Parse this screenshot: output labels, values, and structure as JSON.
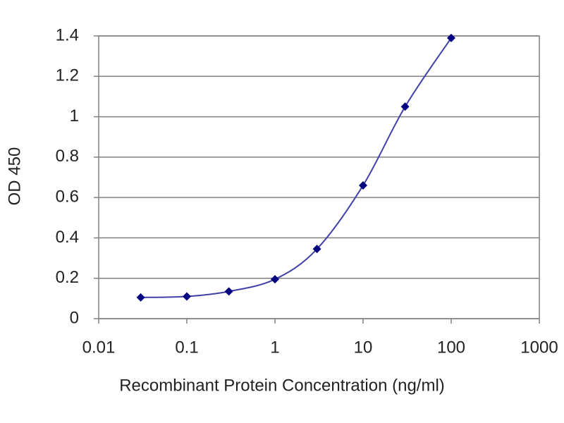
{
  "chart_data": {
    "type": "line",
    "x_label": "Recombinant Protein Concentration (ng/ml)",
    "y_label": "OD 450",
    "x": [
      0.03,
      0.1,
      0.3,
      1,
      3,
      10,
      30,
      100
    ],
    "series": [
      {
        "name": "OD 450",
        "color": "#000080",
        "line_color": "#4040a8",
        "values": [
          0.105,
          0.11,
          0.135,
          0.195,
          0.345,
          0.66,
          1.05,
          1.39
        ]
      }
    ],
    "xlim": [
      0.01,
      1000
    ],
    "xticks": [
      0.01,
      0.1,
      1,
      10,
      100,
      1000
    ],
    "x_log": true,
    "ylim": [
      0,
      1.4
    ],
    "yticks": [
      0,
      0.2,
      0.4,
      0.6,
      0.8,
      1,
      1.2,
      1.4
    ],
    "grid": true
  }
}
